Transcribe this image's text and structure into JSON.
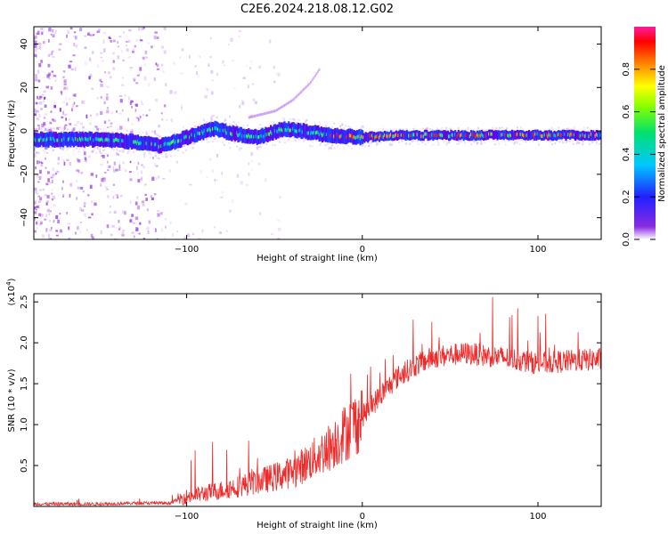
{
  "title": "C2E6.2024.218.08.12.G02",
  "chart_data": [
    {
      "type": "heatmap",
      "name": "spectrogram",
      "xlabel": "Height of straight line (km)",
      "ylabel": "Frequency (Hz)",
      "xlim": [
        -187,
        136
      ],
      "ylim": [
        -50,
        48
      ],
      "xticks": [
        -100,
        0,
        100
      ],
      "yticks": [
        40,
        20,
        0,
        -20,
        -40
      ],
      "colorbar": {
        "label": "Normalized spectral amplitude",
        "range": [
          0.0,
          1.0
        ],
        "ticks": [
          0.0,
          0.2,
          0.4,
          0.6,
          0.8
        ]
      },
      "ridge": {
        "description": "dominant frequency track",
        "x": [
          -187,
          -170,
          -150,
          -130,
          -115,
          -100,
          -85,
          -75,
          -60,
          -45,
          -35,
          -20,
          0,
          20,
          50,
          100,
          136
        ],
        "y": [
          -4,
          -4,
          -4,
          -5,
          -7,
          -3,
          1,
          -1,
          -3,
          1,
          0,
          -2,
          -3,
          -2,
          -2,
          -2,
          -2
        ]
      },
      "secondary_arc": {
        "description": "faint rising trace",
        "x": [
          -65,
          -50,
          -40,
          -30,
          -25
        ],
        "y": [
          6,
          9,
          14,
          22,
          28
        ]
      }
    },
    {
      "type": "line",
      "name": "snr",
      "xlabel": "Height of straight line (km)",
      "ylabel": "SNR (10 * v/v)",
      "yscale_label": "(x10",
      "yscale_exp": "4",
      "xlim": [
        -187,
        136
      ],
      "ylim": [
        0.0,
        2.6
      ],
      "xticks": [
        -100,
        0,
        100
      ],
      "yticks": [
        0.5,
        1.0,
        1.5,
        2.0,
        2.5
      ],
      "color": "#ee2b2b",
      "envelope": {
        "x": [
          -187,
          -150,
          -130,
          -110,
          -100,
          -80,
          -60,
          -40,
          -30,
          -20,
          -10,
          0,
          10,
          20,
          30,
          40,
          50,
          60,
          80,
          100,
          120,
          136
        ],
        "mean": [
          0.03,
          0.03,
          0.04,
          0.04,
          0.12,
          0.2,
          0.3,
          0.42,
          0.55,
          0.7,
          0.9,
          1.1,
          1.35,
          1.58,
          1.72,
          1.82,
          1.85,
          1.87,
          1.82,
          1.75,
          1.78,
          1.8
        ]
      }
    }
  ]
}
